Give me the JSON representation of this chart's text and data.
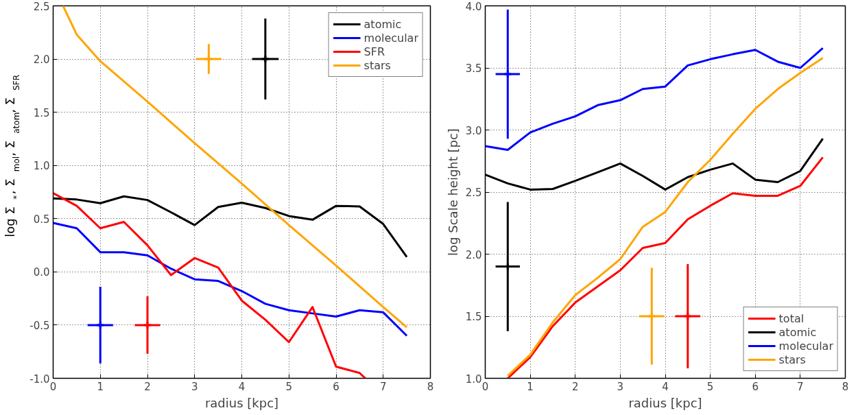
{
  "chart_data": [
    {
      "type": "line",
      "xlabel": "radius [kpc]",
      "ylabel": "log Σ$_{*}$, Σ$_{mol}$, Σ$_{atom}$, Σ$_{SFR}$",
      "xlim": [
        0,
        8
      ],
      "ylim": [
        -1.0,
        2.5
      ],
      "xticks": [
        0,
        1,
        2,
        3,
        4,
        5,
        6,
        7,
        8
      ],
      "yticks": [
        {
          "value": -1.0,
          "label": "-1.0"
        },
        {
          "value": -0.5,
          "label": "-0.5"
        },
        {
          "value": 0.0,
          "label": "0.0"
        },
        {
          "value": 0.5,
          "label": "0.5"
        },
        {
          "value": 1.0,
          "label": "1.0"
        },
        {
          "value": 1.5,
          "label": "1.5"
        },
        {
          "value": 2.0,
          "label": "2.0"
        },
        {
          "value": 2.5,
          "label": "2.5"
        }
      ],
      "grid": true,
      "legend": "top right",
      "marker": "none",
      "line_style": "solid",
      "series": [
        {
          "name": "atomic",
          "color": "#000000",
          "x": [
            0,
            0.5,
            1,
            1.5,
            2,
            2.5,
            3,
            3.5,
            4,
            4.5,
            5,
            5.5,
            6,
            6.5,
            7,
            7.5
          ],
          "values": [
            0.69,
            0.68,
            0.645,
            0.71,
            0.675,
            0.56,
            0.44,
            0.61,
            0.65,
            0.6,
            0.525,
            0.49,
            0.62,
            0.615,
            0.45,
            0.14
          ]
        },
        {
          "name": "molecular",
          "color": "#0000ff",
          "x": [
            0,
            0.5,
            1,
            1.5,
            2,
            2.5,
            3,
            3.5,
            4,
            4.5,
            5,
            5.5,
            6,
            6.5,
            7,
            7.5
          ],
          "values": [
            0.46,
            0.41,
            0.185,
            0.185,
            0.155,
            0.03,
            -0.07,
            -0.085,
            -0.18,
            -0.3,
            -0.36,
            -0.39,
            -0.42,
            -0.36,
            -0.38,
            -0.6
          ]
        },
        {
          "name": "SFR",
          "color": "#ff0000",
          "x": [
            0,
            0.5,
            1,
            1.5,
            2,
            2.5,
            3,
            3.5,
            4,
            4.5,
            5,
            5.5,
            6,
            6.5,
            6.62
          ],
          "values": [
            0.74,
            0.62,
            0.41,
            0.47,
            0.25,
            -0.03,
            0.13,
            0.04,
            -0.27,
            -0.45,
            -0.66,
            -0.33,
            -0.89,
            -0.95,
            -1.0
          ]
        },
        {
          "name": "stars",
          "color": "#ffa500",
          "x": [
            0.21,
            0.5,
            1,
            2,
            3,
            4,
            5,
            6,
            7,
            7.5
          ],
          "values": [
            2.5,
            2.23,
            1.98,
            1.6,
            1.21,
            0.83,
            0.44,
            0.06,
            -0.33,
            -0.52
          ]
        },
        {
          "type": "scatter",
          "marker": "cross",
          "color": "#ffa500",
          "x": [
            3.3
          ],
          "values": [
            2.0
          ],
          "errors": [
            0.14
          ],
          "xerrors": [
            0.27
          ]
        },
        {
          "type": "scatter",
          "marker": "cross",
          "color": "#000000",
          "x": [
            4.5
          ],
          "values": [
            2.0
          ],
          "errors": [
            0.38
          ],
          "xerrors": [
            0.28
          ]
        },
        {
          "type": "scatter",
          "marker": "cross",
          "color": "#0000ff",
          "x": [
            1
          ],
          "values": [
            -0.5
          ],
          "errors": [
            0.36
          ],
          "xerrors": [
            0.27
          ]
        },
        {
          "type": "scatter",
          "marker": "cross",
          "color": "#ff0000",
          "x": [
            2
          ],
          "values": [
            -0.5
          ],
          "errors": [
            0.27
          ],
          "xerrors": [
            0.27
          ]
        }
      ]
    },
    {
      "type": "line",
      "xlabel": "radius [kpc]",
      "ylabel": "log Scale height [pc]",
      "xlim": [
        0,
        8
      ],
      "ylim": [
        1.0,
        4.0
      ],
      "xticks": [
        0,
        1,
        2,
        3,
        4,
        5,
        6,
        7,
        8
      ],
      "yticks": [
        {
          "value": 1.0,
          "label": "1.0"
        },
        {
          "value": 1.5,
          "label": "1.5"
        },
        {
          "value": 2.0,
          "label": "2.0"
        },
        {
          "value": 2.5,
          "label": "2.5"
        },
        {
          "value": 3.0,
          "label": "3.0"
        },
        {
          "value": 3.5,
          "label": "3.5"
        },
        {
          "value": 4.0,
          "label": "4.0"
        }
      ],
      "grid": true,
      "legend": "bottom right",
      "marker": "none",
      "line_style": "solid",
      "series": [
        {
          "name": "total",
          "color": "#ff0000",
          "x": [
            0.5,
            1,
            1.5,
            2,
            2.5,
            3,
            3.5,
            4,
            4.5,
            5,
            5.5,
            6,
            6.5,
            7,
            7.5
          ],
          "values": [
            1.0,
            1.17,
            1.42,
            1.61,
            1.74,
            1.87,
            2.05,
            2.09,
            2.28,
            2.39,
            2.49,
            2.47,
            2.47,
            2.55,
            2.78
          ]
        },
        {
          "name": "atomic",
          "color": "#000000",
          "x": [
            0,
            0.5,
            1,
            1.5,
            2,
            2.5,
            3,
            3.5,
            4,
            4.5,
            5,
            5.5,
            6,
            6.5,
            7,
            7.5
          ],
          "values": [
            2.64,
            2.57,
            2.52,
            2.525,
            2.59,
            2.66,
            2.73,
            2.63,
            2.52,
            2.62,
            2.68,
            2.73,
            2.6,
            2.58,
            2.67,
            2.93
          ]
        },
        {
          "name": "molecular",
          "color": "#0000ff",
          "x": [
            0,
            0.5,
            1,
            1.5,
            2,
            2.5,
            3,
            3.5,
            4,
            4.5,
            5,
            5.5,
            6,
            6.5,
            7,
            7.5
          ],
          "values": [
            2.87,
            2.84,
            2.98,
            3.05,
            3.11,
            3.2,
            3.24,
            3.33,
            3.35,
            3.52,
            3.57,
            3.61,
            3.645,
            3.55,
            3.5,
            3.66
          ]
        },
        {
          "name": "stars",
          "color": "#ffa500",
          "x": [
            0.5,
            1,
            1.5,
            2,
            2.5,
            3,
            3.5,
            4,
            4.5,
            5,
            5.5,
            6,
            6.5,
            7,
            7.5
          ],
          "values": [
            1.02,
            1.19,
            1.45,
            1.67,
            1.81,
            1.96,
            2.22,
            2.34,
            2.58,
            2.76,
            2.97,
            3.17,
            3.33,
            3.46,
            3.58
          ]
        },
        {
          "type": "scatter",
          "marker": "cross",
          "color": "#0000ff",
          "x": [
            0.5
          ],
          "values": [
            3.45
          ],
          "errors": [
            0.52
          ],
          "xerrors": [
            0.27
          ]
        },
        {
          "type": "scatter",
          "marker": "cross",
          "color": "#000000",
          "x": [
            0.5
          ],
          "values": [
            1.9
          ],
          "errors": [
            0.52
          ],
          "xerrors": [
            0.27
          ]
        },
        {
          "type": "scatter",
          "marker": "cross",
          "color": "#ffa500",
          "x": [
            3.7
          ],
          "values": [
            1.5
          ],
          "errors": [
            0.39
          ],
          "xerrors": [
            0.28
          ]
        },
        {
          "type": "scatter",
          "marker": "cross",
          "color": "#ff0000",
          "x": [
            4.5
          ],
          "values": [
            1.5
          ],
          "errors": [
            0.42
          ],
          "xerrors": [
            0.28
          ]
        }
      ]
    }
  ]
}
